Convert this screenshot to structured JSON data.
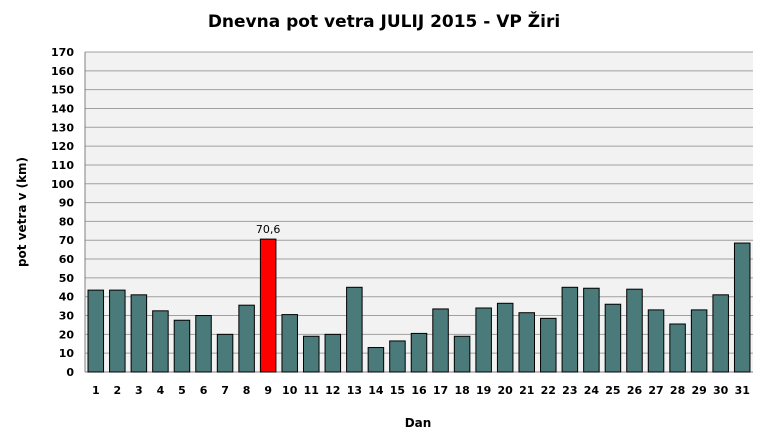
{
  "chart_data": {
    "type": "bar",
    "title": "Dnevna pot vetra JULIJ 2015 - VP Žiri",
    "xlabel": "Dan",
    "ylabel": "pot vetra  v (km)",
    "ylim": [
      0,
      170
    ],
    "ytick_step": 10,
    "grid": true,
    "categories": [
      "1",
      "2",
      "3",
      "4",
      "5",
      "6",
      "7",
      "8",
      "9",
      "10",
      "11",
      "12",
      "13",
      "14",
      "15",
      "16",
      "17",
      "18",
      "19",
      "20",
      "21",
      "22",
      "23",
      "24",
      "25",
      "26",
      "27",
      "28",
      "29",
      "30",
      "31"
    ],
    "values": [
      43.5,
      43.5,
      41,
      32.5,
      27.5,
      30,
      20,
      35.5,
      70.6,
      30.5,
      19,
      20,
      45,
      13,
      16.5,
      20.5,
      33.5,
      19,
      34,
      36.5,
      31.5,
      28.5,
      45,
      44.5,
      36,
      44,
      33,
      25.5,
      33,
      41,
      68.5
    ],
    "highlight_index": 8,
    "highlight_label": "70,6",
    "colors": {
      "bar": "#4a7a7a",
      "highlight": "#ff0000",
      "grid": "#a0a0a0",
      "plot_bg": "#f2f2f2"
    }
  }
}
